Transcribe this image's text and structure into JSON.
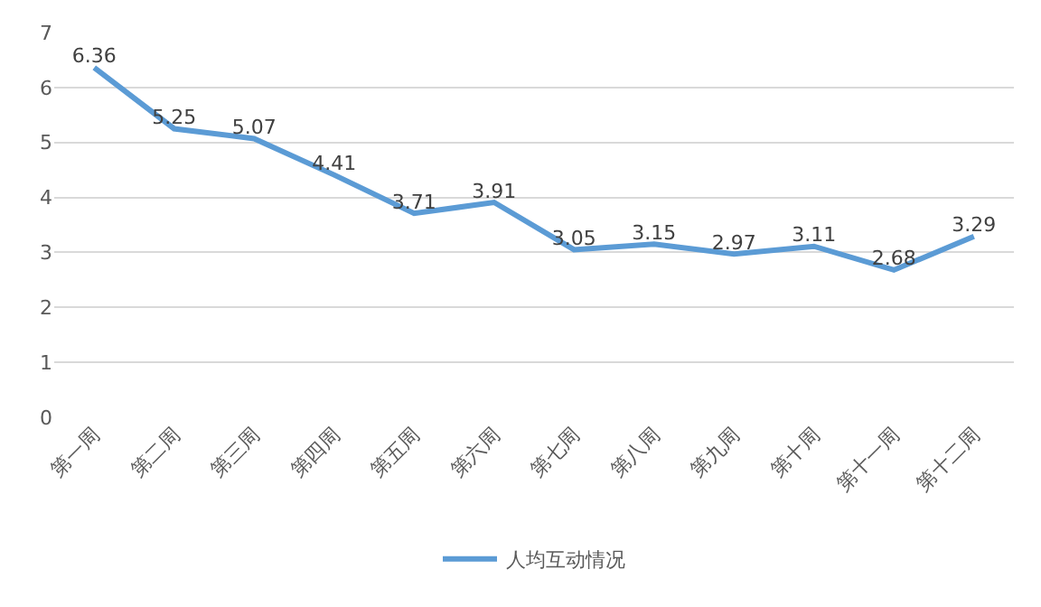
{
  "chart_data": {
    "type": "line",
    "categories": [
      "第一周",
      "第二周",
      "第三周",
      "第四周",
      "第五周",
      "第六周",
      "第七周",
      "第八周",
      "第九周",
      "第十周",
      "第十一周",
      "第十二周"
    ],
    "series": [
      {
        "name": "人均互动情况",
        "color": "#5b9bd5",
        "values": [
          6.36,
          5.25,
          5.07,
          4.41,
          3.71,
          3.91,
          3.05,
          3.15,
          2.97,
          3.11,
          2.68,
          3.29
        ]
      }
    ],
    "ylim": [
      0,
      7
    ],
    "yticks": [
      0,
      1,
      2,
      3,
      4,
      5,
      6,
      7
    ],
    "grid": "y",
    "legend": "bottom",
    "data_labels": true,
    "marker": "none",
    "line_style": "solid"
  }
}
